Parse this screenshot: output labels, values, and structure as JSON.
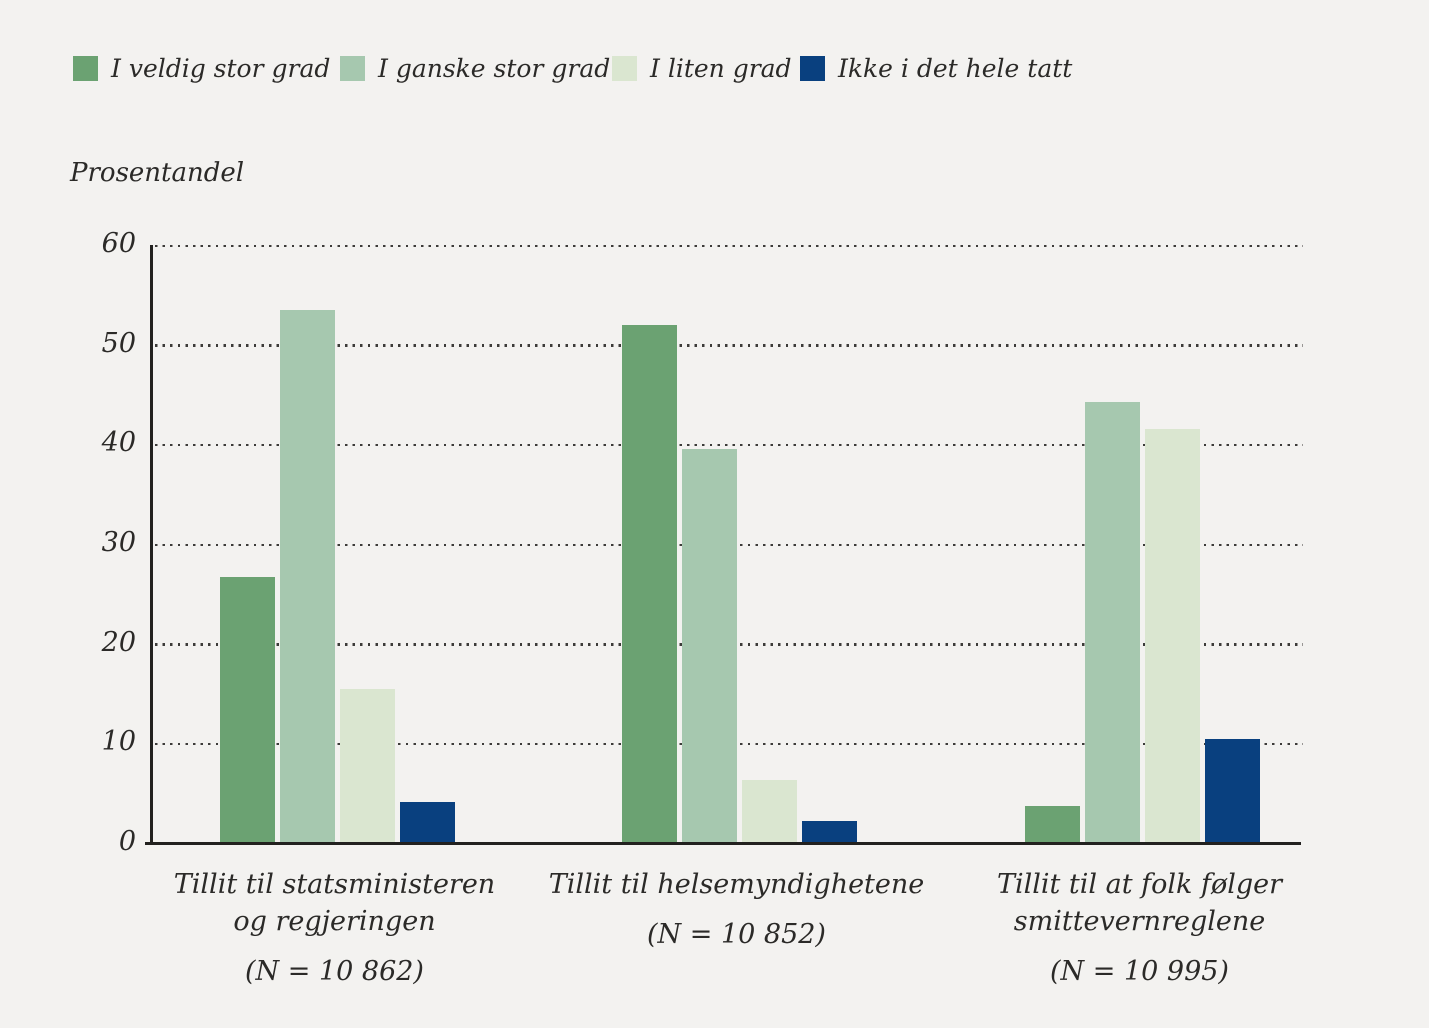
{
  "figure": {
    "axis_title": "Prosentandel",
    "background_color": "#F3F2F0",
    "text_color": "#2B2A28",
    "axis_color": "#22211F"
  },
  "legend": {
    "items": [
      {
        "label": "I veldig stor grad",
        "color": "#6BA272"
      },
      {
        "label": "I ganske stor grad",
        "color": "#A6C8AF"
      },
      {
        "label": "I liten grad",
        "color": "#DAE6D0"
      },
      {
        "label": "Ikke i det hele tatt",
        "color": "#09407F"
      }
    ]
  },
  "chart_data": {
    "type": "bar",
    "title": "",
    "xlabel": "",
    "ylabel": "Prosentandel",
    "ylim": [
      0,
      60
    ],
    "yticks": [
      0,
      10,
      20,
      30,
      40,
      50,
      60
    ],
    "grid": "horizontal-dotted",
    "legend_position": "top-left",
    "categories": [
      {
        "lines": [
          "Tillit til statsministeren",
          "og regjeringen"
        ],
        "n": "(N = 10 862)"
      },
      {
        "lines": [
          "Tillit til helsemyndighetene"
        ],
        "n": "(N = 10 852)"
      },
      {
        "lines": [
          "Tillit til at folk følger",
          "smittevernreglene"
        ],
        "n": "(N = 10 995)"
      }
    ],
    "series": [
      {
        "name": "I veldig stor grad",
        "color": "#6BA272",
        "values": [
          26.7,
          52.0,
          3.7
        ]
      },
      {
        "name": "I ganske stor grad",
        "color": "#A6C8AF",
        "values": [
          53.5,
          39.5,
          44.2
        ]
      },
      {
        "name": "I liten grad",
        "color": "#DAE6D0",
        "values": [
          15.5,
          6.3,
          41.5
        ]
      },
      {
        "name": "Ikke i det hele tatt",
        "color": "#09407F",
        "values": [
          4.1,
          2.2,
          10.4
        ]
      }
    ]
  }
}
